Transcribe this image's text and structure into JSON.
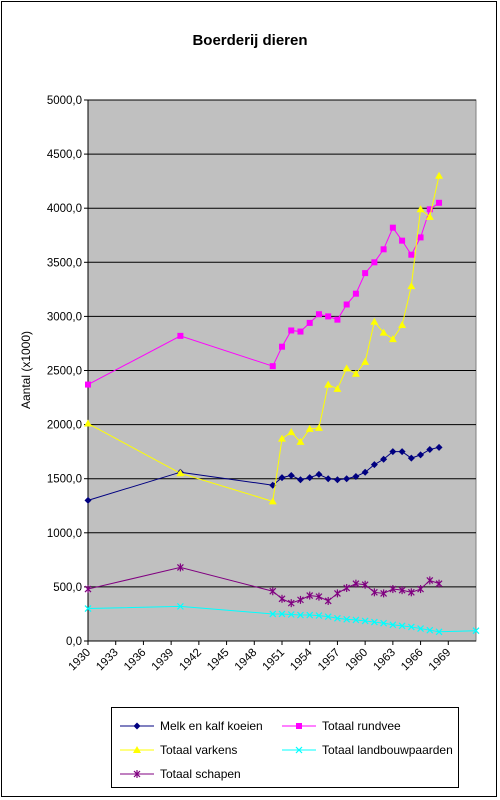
{
  "chart_data": {
    "type": "line",
    "title": "Boerderij dieren",
    "xlabel": "",
    "ylabel": "Aantal (x1000)",
    "xlim": [
      1930,
      1972
    ],
    "ylim": [
      0,
      5000
    ],
    "y_ticks": [
      "0,0",
      "500,0",
      "1000,0",
      "1500,0",
      "2000,0",
      "2500,0",
      "3000,0",
      "3500,0",
      "4000,0",
      "4500,0",
      "5000,0"
    ],
    "x_ticks": [
      "1930",
      "1933",
      "1936",
      "1939",
      "1942",
      "1945",
      "1948",
      "1951",
      "1954",
      "1957",
      "1960",
      "1963",
      "1966",
      "1969"
    ],
    "grid": true,
    "legend_position": "bottom",
    "series": [
      {
        "name": "Melk en kalf koeien",
        "color": "#000080",
        "marker": "diamond",
        "x": [
          1930,
          1940,
          1950,
          1951,
          1952,
          1953,
          1954,
          1955,
          1956,
          1957,
          1958,
          1959,
          1960,
          1961,
          1962,
          1963,
          1964,
          1965,
          1966,
          1967,
          1968
        ],
        "y": [
          1300,
          1560,
          1440,
          1510,
          1530,
          1490,
          1510,
          1540,
          1500,
          1490,
          1500,
          1520,
          1560,
          1630,
          1680,
          1750,
          1750,
          1690,
          1720,
          1770,
          1790
        ]
      },
      {
        "name": "Totaal rundvee",
        "color": "#ff00ff",
        "marker": "square",
        "x": [
          1930,
          1940,
          1950,
          1951,
          1952,
          1953,
          1954,
          1955,
          1956,
          1957,
          1958,
          1959,
          1960,
          1961,
          1962,
          1963,
          1964,
          1965,
          1966,
          1967,
          1968
        ],
        "y": [
          2370,
          2820,
          2540,
          2720,
          2870,
          2860,
          2940,
          3020,
          3000,
          2970,
          3110,
          3210,
          3400,
          3500,
          3620,
          3820,
          3700,
          3570,
          3730,
          3990,
          4050
        ]
      },
      {
        "name": "Totaal varkens",
        "color": "#ffff00",
        "marker": "triangle",
        "x": [
          1930,
          1940,
          1950,
          1951,
          1952,
          1953,
          1954,
          1955,
          1956,
          1957,
          1958,
          1959,
          1960,
          1961,
          1962,
          1963,
          1964,
          1965,
          1966,
          1967,
          1968
        ],
        "y": [
          2010,
          1550,
          1290,
          1870,
          1930,
          1840,
          1960,
          1970,
          2370,
          2330,
          2520,
          2470,
          2580,
          2950,
          2850,
          2790,
          2920,
          3280,
          3990,
          3920,
          4300
        ]
      },
      {
        "name": "Totaal landbouwpaarden",
        "color": "#00ffff",
        "marker": "x",
        "x": [
          1930,
          1940,
          1950,
          1951,
          1952,
          1953,
          1954,
          1955,
          1956,
          1957,
          1958,
          1959,
          1960,
          1961,
          1962,
          1963,
          1964,
          1965,
          1966,
          1967,
          1968,
          1972
        ],
        "y": [
          300,
          320,
          250,
          250,
          245,
          240,
          240,
          235,
          225,
          210,
          200,
          195,
          185,
          175,
          165,
          150,
          140,
          130,
          115,
          100,
          85,
          95
        ]
      },
      {
        "name": "Totaal schapen",
        "color": "#800080",
        "marker": "star",
        "x": [
          1930,
          1940,
          1950,
          1951,
          1952,
          1953,
          1954,
          1955,
          1956,
          1957,
          1958,
          1959,
          1960,
          1961,
          1962,
          1963,
          1964,
          1965,
          1966,
          1967,
          1968
        ],
        "y": [
          480,
          680,
          460,
          390,
          350,
          380,
          420,
          410,
          370,
          440,
          490,
          530,
          520,
          450,
          440,
          480,
          470,
          450,
          480,
          560,
          530
        ]
      }
    ]
  }
}
